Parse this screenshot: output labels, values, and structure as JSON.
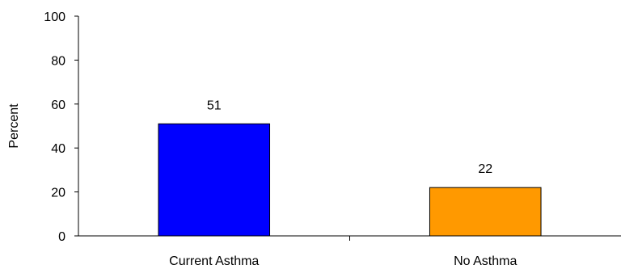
{
  "chart_data": {
    "type": "bar",
    "title": "",
    "xlabel": "",
    "ylabel": "Percent",
    "ylim": [
      0,
      100
    ],
    "yticks": [
      0,
      20,
      40,
      60,
      80,
      100
    ],
    "categories": [
      "Current Asthma",
      "No Asthma"
    ],
    "values": [
      51,
      22
    ],
    "data_labels": [
      "51",
      "22"
    ],
    "bar_colors": [
      "#0000ff",
      "#ff9900"
    ],
    "bar_edge_color": "#000000",
    "grid": false,
    "legend": "none"
  }
}
